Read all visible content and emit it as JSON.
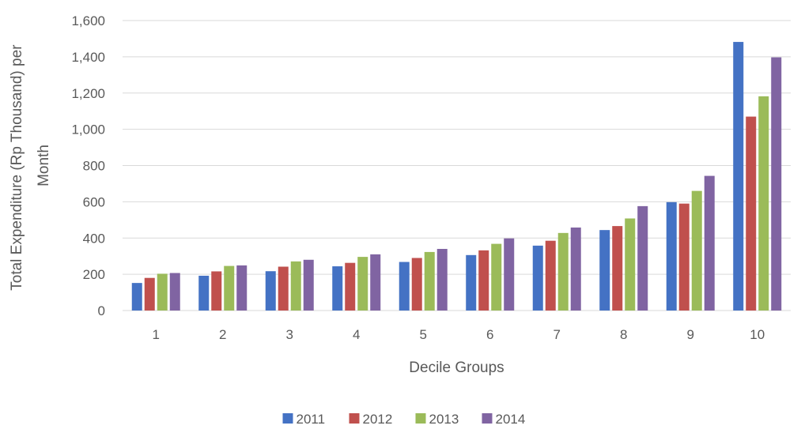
{
  "chart_data": {
    "type": "bar",
    "title": "",
    "xlabel": "Decile Groups",
    "ylabel_lines": [
      "Total Expenditure (Rp Thousand) per",
      "Month"
    ],
    "categories": [
      "1",
      "2",
      "3",
      "4",
      "5",
      "6",
      "7",
      "8",
      "9",
      "10"
    ],
    "series": [
      {
        "name": "2011",
        "color": "#4472C4",
        "values": [
          152,
          192,
          217,
          244,
          268,
          306,
          358,
          444,
          598,
          1482
        ]
      },
      {
        "name": "2012",
        "color": "#C0504D",
        "values": [
          180,
          216,
          242,
          263,
          290,
          332,
          385,
          466,
          590,
          1070
        ]
      },
      {
        "name": "2013",
        "color": "#9BBB59",
        "values": [
          203,
          246,
          271,
          296,
          323,
          368,
          428,
          508,
          660,
          1182
        ]
      },
      {
        "name": "2014",
        "color": "#8064A2",
        "values": [
          207,
          249,
          280,
          310,
          340,
          398,
          458,
          576,
          743,
          1397
        ]
      }
    ],
    "ylim": [
      0,
      1600
    ],
    "yticks": [
      0,
      200,
      400,
      600,
      800,
      1000,
      1200,
      1400,
      1600
    ],
    "ytick_labels": [
      "0",
      "200",
      "400",
      "600",
      "800",
      "1,000",
      "1,200",
      "1,400",
      "1,600"
    ],
    "grid": true,
    "legend_position": "bottom"
  }
}
